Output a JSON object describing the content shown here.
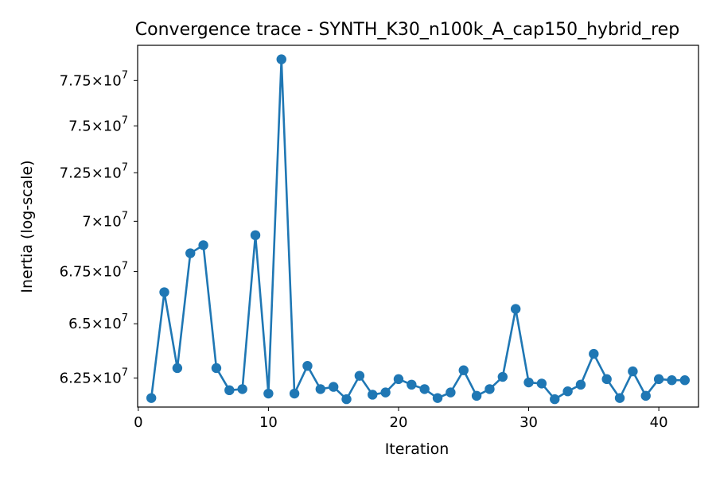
{
  "chart_data": {
    "type": "line",
    "title": "Convergence trace - SYNTH_K30_n100k_A_cap150_hybrid_rep",
    "xlabel": "Iteration",
    "ylabel": "Inertia (log-scale)",
    "yscale": "log",
    "xlim": [
      -0.05,
      43.05
    ],
    "ylim": [
      61200000,
      79500000
    ],
    "grid": false,
    "x_ticks": [
      {
        "value": 0,
        "label": "0"
      },
      {
        "value": 10,
        "label": "10"
      },
      {
        "value": 20,
        "label": "20"
      },
      {
        "value": 30,
        "label": "30"
      },
      {
        "value": 40,
        "label": "40"
      }
    ],
    "y_ticks": [
      {
        "value": 62500000,
        "mantissa": "6.25",
        "exponent": "7"
      },
      {
        "value": 65000000,
        "mantissa": "6.5",
        "exponent": "7"
      },
      {
        "value": 67500000,
        "mantissa": "6.75",
        "exponent": "7"
      },
      {
        "value": 70000000,
        "mantissa": "7",
        "exponent": "7"
      },
      {
        "value": 72500000,
        "mantissa": "7.25",
        "exponent": "7"
      },
      {
        "value": 75000000,
        "mantissa": "7.5",
        "exponent": "7"
      },
      {
        "value": 77500000,
        "mantissa": "7.75",
        "exponent": "7"
      }
    ],
    "series": [
      {
        "color": "#1f77b4",
        "marker": "circle",
        "x": [
          1,
          2,
          3,
          4,
          5,
          6,
          7,
          8,
          9,
          10,
          11,
          12,
          13,
          14,
          15,
          16,
          17,
          18,
          19,
          20,
          21,
          22,
          23,
          24,
          25,
          26,
          27,
          28,
          29,
          30,
          31,
          32,
          33,
          34,
          35,
          36,
          37,
          38,
          39,
          40,
          41,
          42
        ],
        "y": [
          61600000,
          66500000,
          62950000,
          68400000,
          68800000,
          62950000,
          61950000,
          62000000,
          69300000,
          61800000,
          78700000,
          61800000,
          63050000,
          62000000,
          62100000,
          61550000,
          62600000,
          61750000,
          61850000,
          62450000,
          62200000,
          62000000,
          61600000,
          61850000,
          62850000,
          61700000,
          62000000,
          62550000,
          65700000,
          62300000,
          62250000,
          61550000,
          61900000,
          62200000,
          63600000,
          62450000,
          61600000,
          62800000,
          61700000,
          62450000,
          62400000,
          62400000
        ]
      }
    ]
  }
}
